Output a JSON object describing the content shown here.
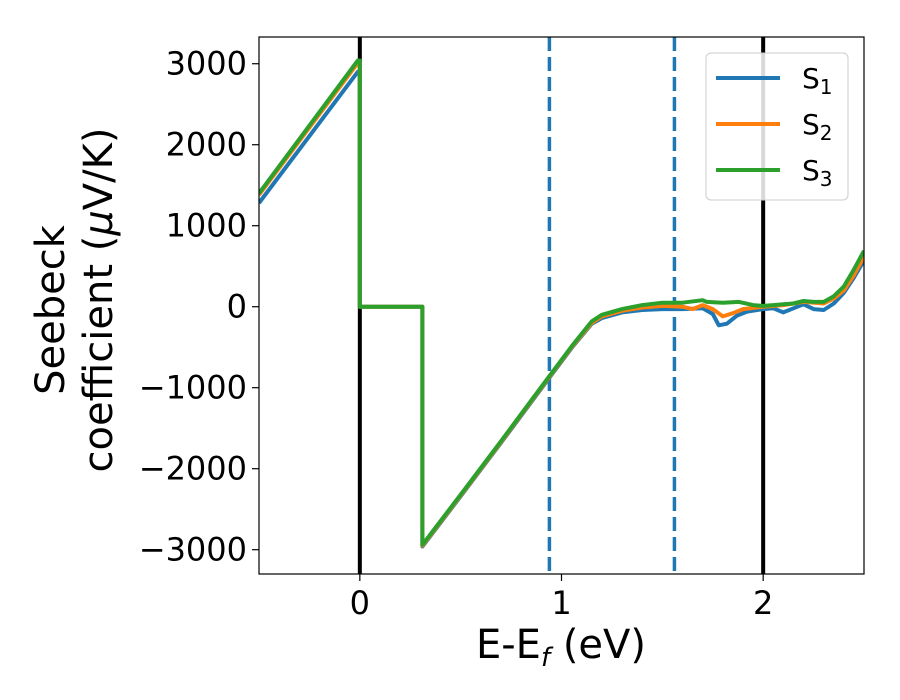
{
  "chart_data": {
    "type": "line",
    "xlabel": "E-E",
    "xlabel_sub": "f",
    "xlabel_unit": " (eV)",
    "ylabel_line1": "Seebeck",
    "ylabel_line2_pre": "coefficient  (",
    "ylabel_line2_mu": "μ",
    "ylabel_line2_post": "V/K)",
    "xlim": [
      -0.5,
      2.5
    ],
    "ylim": [
      -3300,
      3330
    ],
    "x_ticks": [
      0,
      1,
      2
    ],
    "x_tick_labels": [
      "0",
      "1",
      "2"
    ],
    "y_ticks": [
      3000,
      2000,
      1000,
      0,
      -1000,
      -2000,
      -3000
    ],
    "y_tick_labels": [
      "3000",
      "2000",
      "1000",
      "0",
      "−1000",
      "−2000",
      "−3000"
    ],
    "grid": false,
    "legend_position": "top-right",
    "vertical_lines": [
      {
        "x": 0,
        "style": "solid",
        "color": "#000000"
      },
      {
        "x": 0.94,
        "style": "dashed",
        "color": "#1f77b4"
      },
      {
        "x": 1.56,
        "style": "dashed",
        "color": "#1f77b4"
      },
      {
        "x": 2.0,
        "style": "solid",
        "color": "#000000"
      }
    ],
    "series": [
      {
        "name": "S",
        "subscript": "1",
        "color": "#1f77b4",
        "points": [
          [
            -0.5,
            1280
          ],
          [
            -0.01,
            2900
          ],
          [
            0.0,
            2900
          ],
          [
            0.0,
            0
          ],
          [
            0.31,
            0
          ],
          [
            0.31,
            -2960
          ],
          [
            0.5,
            -2340
          ],
          [
            0.7,
            -1680
          ],
          [
            0.9,
            -1010
          ],
          [
            1.05,
            -510
          ],
          [
            1.15,
            -210
          ],
          [
            1.2,
            -140
          ],
          [
            1.3,
            -70
          ],
          [
            1.4,
            -40
          ],
          [
            1.5,
            -30
          ],
          [
            1.6,
            -30
          ],
          [
            1.7,
            -20
          ],
          [
            1.75,
            -90
          ],
          [
            1.78,
            -230
          ],
          [
            1.82,
            -210
          ],
          [
            1.87,
            -110
          ],
          [
            1.92,
            -60
          ],
          [
            2.0,
            -30
          ],
          [
            2.05,
            -20
          ],
          [
            2.1,
            -70
          ],
          [
            2.15,
            -20
          ],
          [
            2.2,
            30
          ],
          [
            2.25,
            -30
          ],
          [
            2.3,
            -40
          ],
          [
            2.35,
            40
          ],
          [
            2.4,
            170
          ],
          [
            2.45,
            360
          ],
          [
            2.5,
            570
          ]
        ]
      },
      {
        "name": "S",
        "subscript": "2",
        "color": "#ff7f0e",
        "points": [
          [
            -0.5,
            1380
          ],
          [
            -0.01,
            3010
          ],
          [
            0.0,
            3010
          ],
          [
            0.0,
            0
          ],
          [
            0.31,
            0
          ],
          [
            0.31,
            -2950
          ],
          [
            0.5,
            -2330
          ],
          [
            0.7,
            -1670
          ],
          [
            0.9,
            -1000
          ],
          [
            1.05,
            -500
          ],
          [
            1.15,
            -200
          ],
          [
            1.2,
            -120
          ],
          [
            1.3,
            -50
          ],
          [
            1.4,
            -10
          ],
          [
            1.5,
            10
          ],
          [
            1.6,
            0
          ],
          [
            1.65,
            -30
          ],
          [
            1.7,
            20
          ],
          [
            1.75,
            -30
          ],
          [
            1.8,
            -120
          ],
          [
            1.85,
            -80
          ],
          [
            1.9,
            -30
          ],
          [
            2.0,
            0
          ],
          [
            2.1,
            20
          ],
          [
            2.2,
            60
          ],
          [
            2.3,
            40
          ],
          [
            2.35,
            100
          ],
          [
            2.4,
            200
          ],
          [
            2.45,
            390
          ],
          [
            2.5,
            620
          ]
        ]
      },
      {
        "name": "S",
        "subscript": "3",
        "color": "#2ca02c",
        "points": [
          [
            -0.5,
            1400
          ],
          [
            -0.01,
            3040
          ],
          [
            0.0,
            3040
          ],
          [
            0.0,
            0
          ],
          [
            0.31,
            0
          ],
          [
            0.31,
            -2940
          ],
          [
            0.5,
            -2320
          ],
          [
            0.7,
            -1660
          ],
          [
            0.9,
            -990
          ],
          [
            1.05,
            -490
          ],
          [
            1.15,
            -180
          ],
          [
            1.2,
            -100
          ],
          [
            1.3,
            -30
          ],
          [
            1.4,
            20
          ],
          [
            1.5,
            50
          ],
          [
            1.6,
            50
          ],
          [
            1.7,
            80
          ],
          [
            1.72,
            60
          ],
          [
            1.8,
            50
          ],
          [
            1.88,
            60
          ],
          [
            1.95,
            20
          ],
          [
            2.0,
            10
          ],
          [
            2.05,
            20
          ],
          [
            2.1,
            30
          ],
          [
            2.15,
            40
          ],
          [
            2.2,
            70
          ],
          [
            2.25,
            60
          ],
          [
            2.3,
            60
          ],
          [
            2.35,
            130
          ],
          [
            2.4,
            250
          ],
          [
            2.45,
            460
          ],
          [
            2.5,
            690
          ]
        ]
      }
    ]
  }
}
